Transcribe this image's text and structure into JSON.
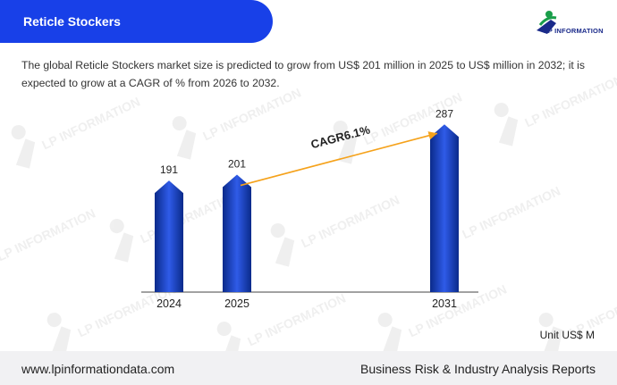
{
  "header": {
    "title": "Reticle Stockers"
  },
  "logo": {
    "text": "LP INFORMATION",
    "watermark_text": "LP INFORMATION"
  },
  "description": "The global Reticle Stockers market size is predicted to grow from US$ 201 million in 2025 to US$ million in 2032; it is expected to grow at a CAGR of % from 2026 to 2032.",
  "unit": "Unit US$ M",
  "footer": {
    "website": "www.lpinformationdata.com",
    "tagline": "Business Risk & Industry Analysis Reports"
  },
  "colors": {
    "header_bg": "#1840e8",
    "bar_dark": "#0a2a8a",
    "bar_light": "#2f5be8",
    "cagr_arrow": "#f5a21b",
    "footer_bg": "#f1f1f3"
  },
  "chart_data": {
    "type": "bar",
    "categories": [
      "2024",
      "2025",
      "2031"
    ],
    "values": [
      191,
      201,
      287
    ],
    "data_labels": [
      "191",
      "201",
      "287"
    ],
    "annotation": {
      "text": "CAGR6.1%",
      "from": "2025",
      "to": "2031"
    },
    "ylim": [
      0,
      300
    ],
    "grid": false
  }
}
